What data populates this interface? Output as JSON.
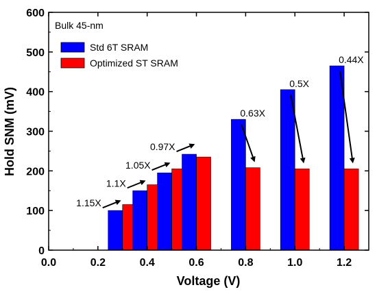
{
  "chart_data": {
    "type": "bar",
    "title": "",
    "xlabel": "Voltage (V)",
    "ylabel": "Hold SNM (mV)",
    "xlim": [
      0.0,
      1.3
    ],
    "ylim": [
      0,
      600
    ],
    "x_ticks": [
      "0.0",
      "0.2",
      "0.4",
      "0.6",
      "0.8",
      "1.0",
      "1.2"
    ],
    "x_tick_values": [
      0.0,
      0.2,
      0.4,
      0.6,
      0.8,
      1.0,
      1.2
    ],
    "y_ticks": [
      "0",
      "100",
      "200",
      "300",
      "400",
      "500",
      "600"
    ],
    "y_tick_values": [
      0,
      100,
      200,
      300,
      400,
      500,
      600
    ],
    "annotation_box": "Bulk 45-nm",
    "legend_position": "top-left",
    "grid": false,
    "x": [
      0.3,
      0.4,
      0.5,
      0.6,
      0.8,
      1.0,
      1.2
    ],
    "series": [
      {
        "name": "Std 6T SRAM",
        "color": "#0000ff",
        "values": [
          100,
          150,
          195,
          242,
          330,
          405,
          465
        ]
      },
      {
        "name": "Optimized ST SRAM",
        "color": "#ff0000",
        "values": [
          115,
          165,
          205,
          235,
          208,
          205,
          205
        ]
      }
    ],
    "ratio_labels": [
      "1.15X",
      "1.1X",
      "1.05X",
      "0.97X",
      "0.63X",
      "0.5X",
      "0.44X"
    ]
  }
}
